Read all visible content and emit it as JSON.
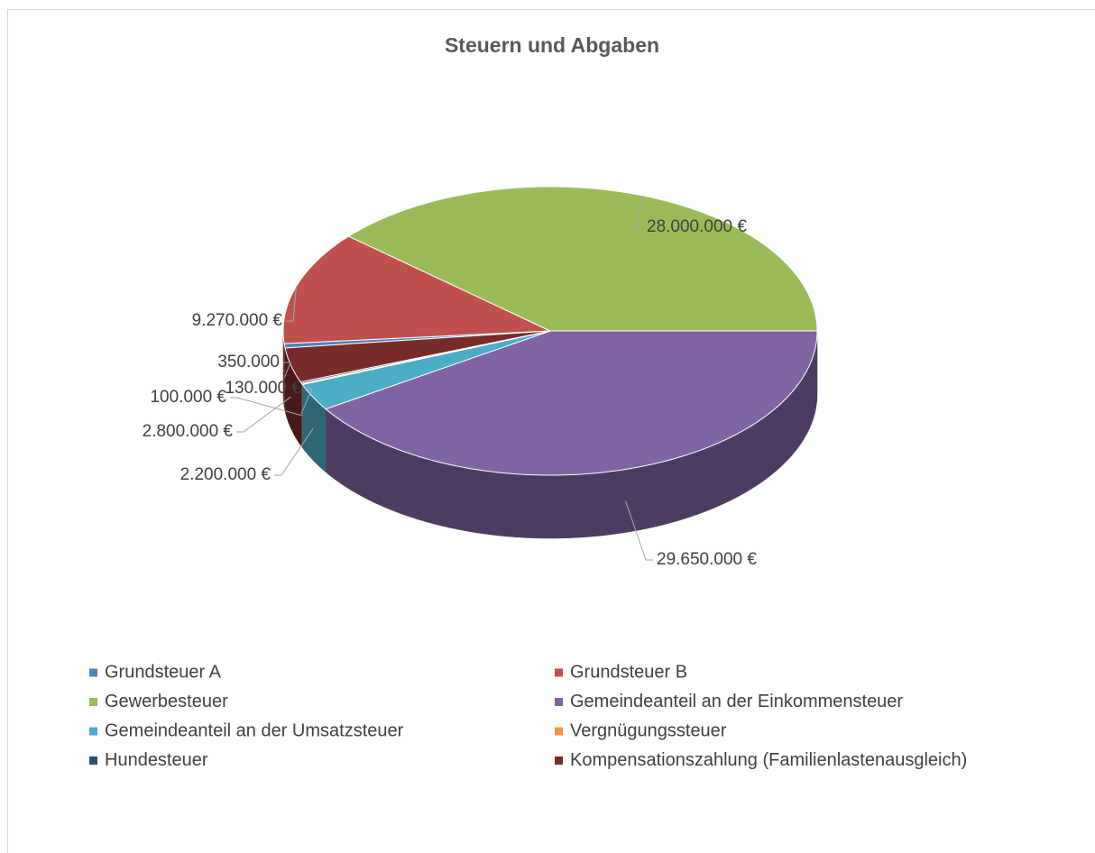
{
  "chart_data": {
    "type": "pie",
    "title": "Steuern und Abgaben",
    "categories": [
      "Grundsteuer A",
      "Grundsteuer B",
      "Gewerbesteuer",
      "Gemeindeanteil an der Einkommensteuer",
      "Gemeindeanteil an der Umsatzsteuer",
      "Vergnügungssteuer",
      "Hundesteuer",
      "Kompensationszahlung (Familienlastenausgleich)"
    ],
    "values": [
      350000,
      9270000,
      28000000,
      29650000,
      2200000,
      100000,
      130000,
      2800000
    ],
    "value_labels": [
      "350.000",
      "9.270.000 €",
      "28.000.000 €",
      "29.650.000 €",
      "2.200.000 €",
      "100.000 €",
      "130.000 €",
      "2.800.000 €"
    ],
    "colors": [
      "#4f81bd",
      "#c0504d",
      "#9bbb59",
      "#8064a2",
      "#4bacc6",
      "#f79646",
      "#2c4d75",
      "#772c2a"
    ],
    "legend": "bottom"
  }
}
